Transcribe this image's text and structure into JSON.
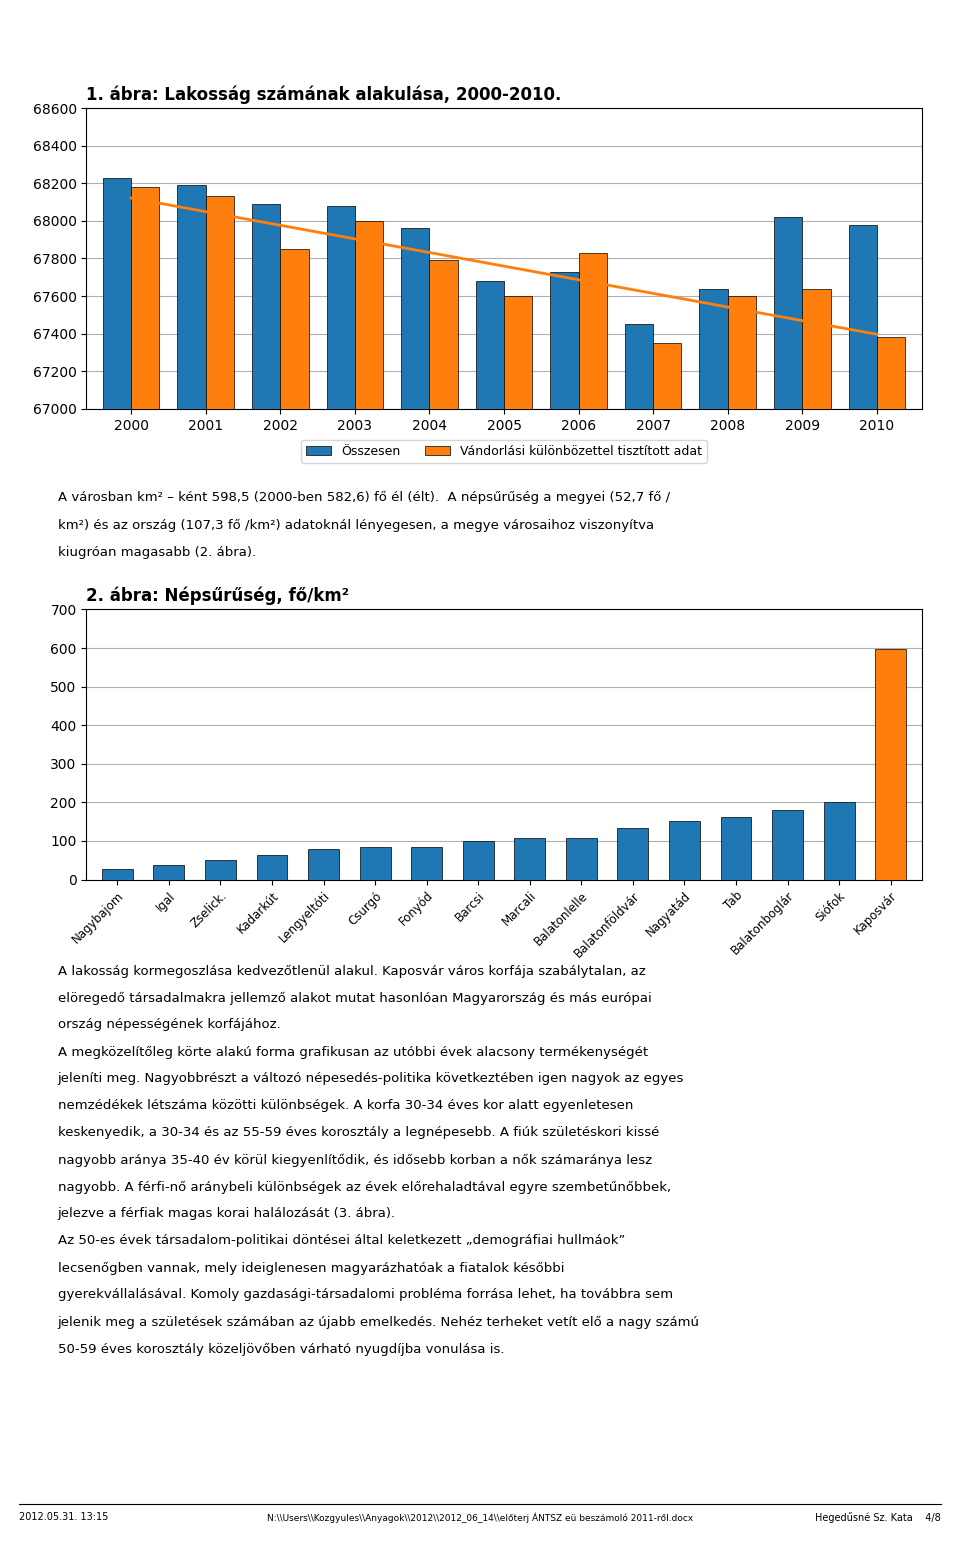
{
  "chart_data": [
    {
      "type": "bar",
      "title": "1. ábra: Lakosság számának alakulása, 2000-2010.",
      "categories": [
        "2000",
        "2001",
        "2002",
        "2003",
        "2004",
        "2005",
        "2006",
        "2007",
        "2008",
        "2009",
        "2010"
      ],
      "series": [
        {
          "name": "Összesen",
          "color": "#1f77b4",
          "values": [
            68230,
            68190,
            68090,
            68080,
            67960,
            67680,
            67730,
            67450,
            67640,
            68020,
            67980
          ]
        },
        {
          "name": "Vándorlási különbözettel tisztított adat",
          "color": "#ff7f0e",
          "values": [
            68180,
            68130,
            67850,
            68000,
            67790,
            67600,
            67830,
            67350,
            67600,
            67640,
            67380
          ]
        },
        {
          "type": "line",
          "color": "#ff7f0e",
          "values": [
            68121.36,
            68048.91,
            67976.45,
            67904.0,
            67831.55,
            67759.09,
            67686.64,
            67614.18,
            67541.73,
            67469.27,
            67396.82
          ]
        }
      ],
      "ylim": [
        67000,
        68600
      ],
      "yticks": [
        67000,
        67200,
        67400,
        67600,
        67800,
        68000,
        68200,
        68400,
        68600
      ],
      "grid": true,
      "legend": "lower center",
      "annotations": [
        "A városban km² – ként 598,5 (2000-ben 582,6) fő él (élt).  A népsűrűség a megyei (52,7 fő /",
        "km²) és az ország (107,3 fő /km²) adatoknál lényegesen, a megye városaihoz viszonyítva",
        "kiugróan magasabb (2. ábra)."
      ]
    },
    {
      "type": "bar",
      "title": "2. ábra: Népsűrűség, fő/km²",
      "categories": [
        "Nagybajom",
        "Igal",
        "Zselick.",
        "Kadarkút",
        "Lengyeltóti",
        "Csurgó",
        "Fonyód",
        "Barcsi",
        "Marcali",
        "Balatonlelle",
        "Balatonföldvár",
        "Nagyatád",
        "Tab",
        "Balatonboglár",
        "Siófok",
        "Kaposvár"
      ],
      "values": [
        27,
        38,
        50,
        63,
        78,
        85,
        85,
        100,
        108,
        108,
        133,
        152,
        161,
        181,
        200,
        598
      ],
      "colors": [
        "#1f77b4",
        "#1f77b4",
        "#1f77b4",
        "#1f77b4",
        "#1f77b4",
        "#1f77b4",
        "#1f77b4",
        "#1f77b4",
        "#1f77b4",
        "#1f77b4",
        "#1f77b4",
        "#1f77b4",
        "#1f77b4",
        "#1f77b4",
        "#1f77b4",
        "#ff7f0e"
      ],
      "ylim": [
        0,
        700
      ],
      "yticks": [
        0,
        100,
        200,
        300,
        400,
        500,
        600,
        700
      ],
      "grid": true,
      "annotations": [
        "A lakosság kormegoszlása kedvezőtlenül alakul. Kaposvár város korfája szabálytalan, az",
        "elöregedő társadalmakra jellemző alakot mutat hasonlóan Magyarország és más európai",
        "ország népességének korfájához.",
        "A megközelítőleg körte alakú forma grafikusan az utóbbi évek alacsony termékenységét",
        "jeleníti meg. Nagyobbrészt a változó népesedés-politika következtében igen nagyok az egyes",
        "nemzédékek létszáma közötti különbségek. A korfa 30-34 éves kor alatt egyenletesen",
        "keskenyedik, a 30-34 és az 55-59 éves korosztály a legnépesebb. A fiúk születéskori kissé",
        "nagyobb aránya 35-40 év körül kiegyenlítődik, és idősebb korban a nők számaránya lesz",
        "nagyobb. A férfi-nő aránybeli különbségek az évek előrehaladtával egyre szembetűnőbbek,",
        "jelezve a férfiak magas korai halálozását (3. ábra).",
        "Az 50-es évek társadalom-politikai döntései által keletkezett „demográfiai hullmáok”",
        "lecsenőgben vannak, mely ideiglenesen magyarázhatóak a fiatalok későbbi",
        "gyerekvállalásával. Komoly gazdasági-társadalomi probléma forrása lehet, ha továbbra sem",
        "jelenik meg a születések számában az újabb emelkedés. Nehéz terheket vetít elő a nagy számú",
        "50-59 éves korosztály közeljövőben várható nyugdíjba vonulása is."
      ]
    }
  ],
  "annotations": [
    "2012.05.31. 13:15",
    "N:\\\\Users\\\\Kozgyules\\\\Anyagok\\\\2012\\\\2012_06_14\\\\előterj ÁNTSZ eü beszámoló 2011-ről.docx",
    "Hegedűsné Sz. Kata    4/8"
  ]
}
